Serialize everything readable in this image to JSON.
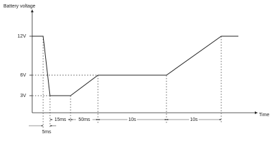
{
  "y_axis_label": "Battery voltage",
  "x_axis_label": "Time",
  "levels": [
    "12V",
    "6V",
    "3V"
  ],
  "durations": [
    "5ms",
    "15ms",
    "50ms",
    "10s",
    "10s"
  ]
}
